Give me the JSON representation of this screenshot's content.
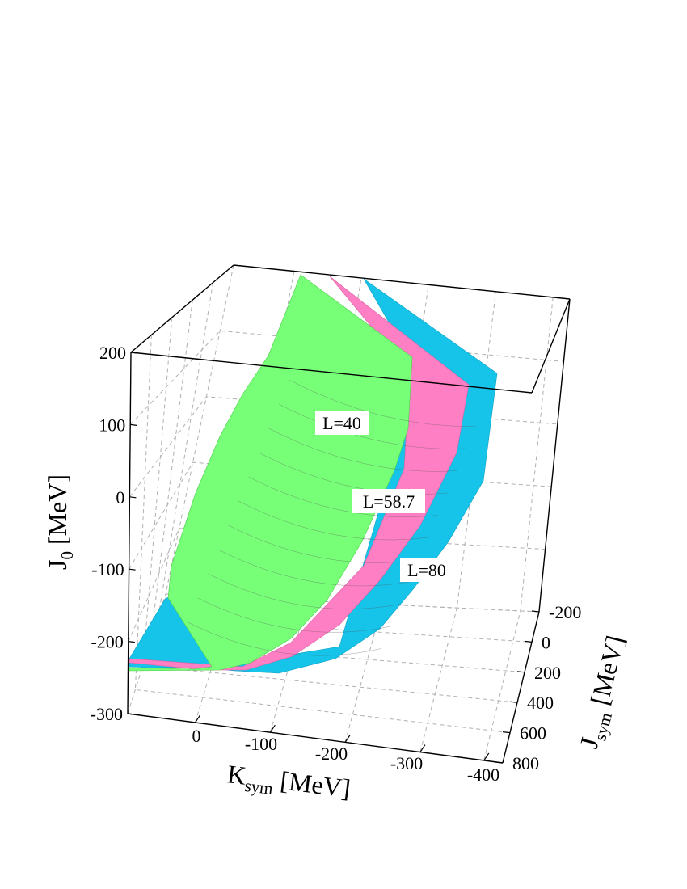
{
  "chart_data": {
    "type": "surface3d",
    "title": "",
    "x_axis": {
      "label_main": "K",
      "label_sub": "sym",
      "label_unit": " [MeV]",
      "range": [
        -400,
        100
      ],
      "ticks": [
        "0",
        "-100",
        "-200",
        "-300",
        "-400"
      ],
      "tick_values": [
        0,
        -100,
        -200,
        -300,
        -400
      ]
    },
    "y_axis": {
      "label_main": "J",
      "label_sub": "sym",
      "label_unit": " [MeV]",
      "range": [
        -200,
        800
      ],
      "ticks": [
        "-200",
        "0",
        "200",
        "400",
        "600",
        "800"
      ],
      "tick_values": [
        -200,
        0,
        200,
        400,
        600,
        800
      ]
    },
    "z_axis": {
      "label_main": "J",
      "label_sub": "0",
      "label_unit": " [MeV]",
      "range": [
        -300,
        200
      ],
      "ticks": [
        "200",
        "100",
        "0",
        "-100",
        "-200",
        "-300"
      ],
      "tick_values": [
        200,
        100,
        0,
        -100,
        -200,
        -300
      ]
    },
    "grid": true,
    "series": [
      {
        "name": "L=80",
        "color": "#16c4ea"
      },
      {
        "name": "L=58.7",
        "color": "#ff7fc4"
      },
      {
        "name": "L=40",
        "color": "#77ff77"
      }
    ]
  }
}
